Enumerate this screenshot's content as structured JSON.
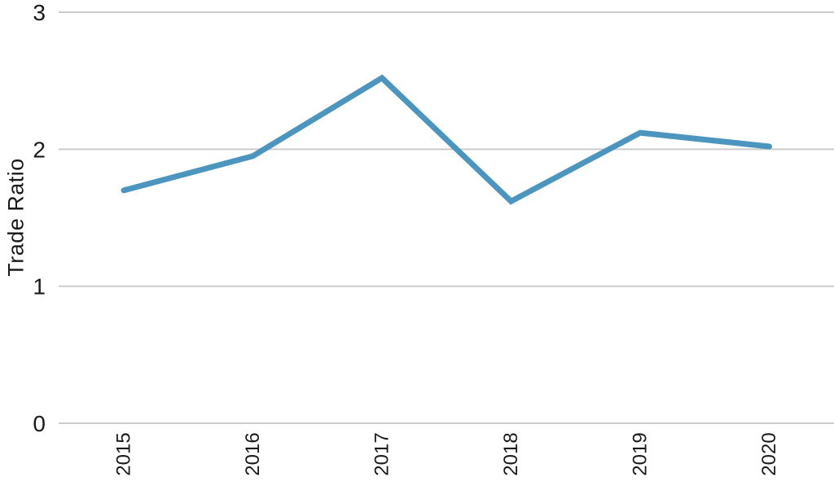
{
  "chart_data": {
    "type": "line",
    "title": "",
    "categories": [
      "2015",
      "2016",
      "2017",
      "2018",
      "2019",
      "2020"
    ],
    "series": [
      {
        "name": "Trade Ratio",
        "values": [
          1.7,
          1.95,
          2.52,
          1.62,
          2.12,
          2.02
        ],
        "color": "#4c95bf"
      }
    ],
    "xlabel": "",
    "ylabel": "Trade Ratio",
    "ylim": [
      0,
      3
    ],
    "yticks": [
      0,
      1,
      2,
      3
    ],
    "grid": true,
    "legend": "none",
    "colors": {
      "line": "#4c95bf",
      "gridline": "#cccccc",
      "text": "#1a1a1a",
      "background": "#ffffff"
    }
  }
}
